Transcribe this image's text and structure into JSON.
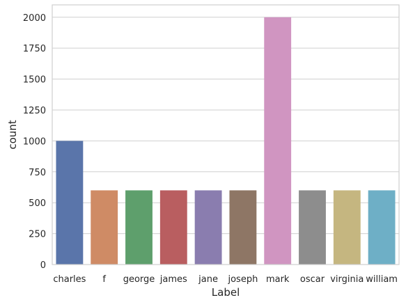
{
  "chart_data": {
    "type": "bar",
    "title": "",
    "xlabel": "Label",
    "ylabel": "count",
    "categories": [
      "charles",
      "f",
      "george",
      "james",
      "jane",
      "joseph",
      "mark",
      "oscar",
      "virginia",
      "william"
    ],
    "values": [
      1000,
      600,
      600,
      600,
      600,
      600,
      2000,
      600,
      600,
      600
    ],
    "ylim": [
      0,
      2100
    ],
    "yticks": [
      "0",
      "250",
      "500",
      "750",
      "1000",
      "1250",
      "1500",
      "1750",
      "2000"
    ],
    "grid": "y",
    "legend": "none",
    "colors": [
      "#5a75aa",
      "#cf8b65",
      "#5e9f6c",
      "#b95e60",
      "#8a7daf",
      "#8e7665",
      "#d095c1",
      "#8d8d8d",
      "#c5b680",
      "#6eafc6"
    ],
    "style": {
      "grid_color": "#cfcfcf",
      "axes_edge_color": "#cfcfcf",
      "text_color": "#262626"
    }
  }
}
